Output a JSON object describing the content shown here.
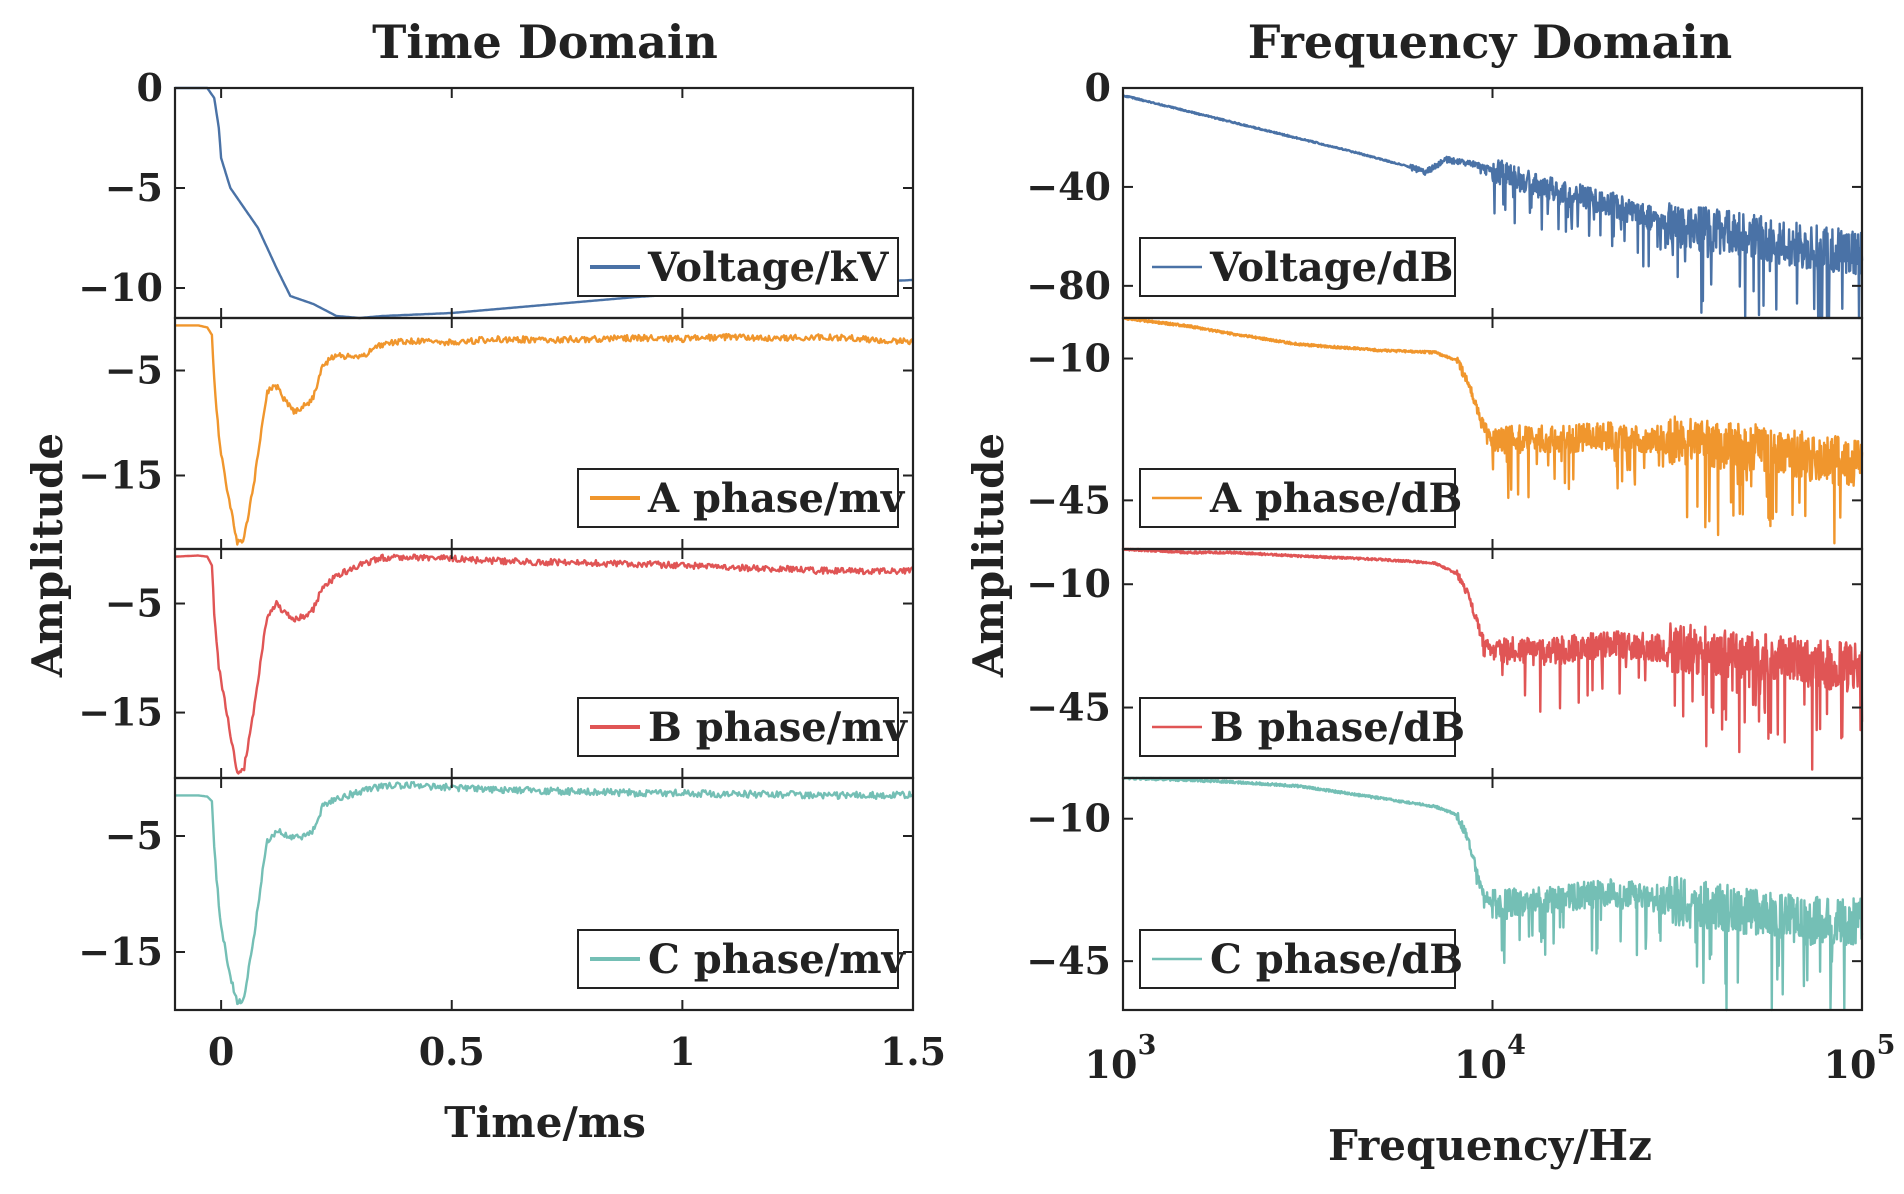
{
  "chart_data": [
    {
      "type": "line",
      "title": "Time Domain",
      "xlabel": "Time/ms",
      "ylabel": "Amplitude",
      "xscale": "linear",
      "xlim": [
        -0.1,
        1.5
      ],
      "xticks": [
        0,
        0.5,
        1,
        1.5
      ],
      "xtick_labels": [
        "0",
        "0.5",
        "1",
        "1.5"
      ],
      "panels": [
        {
          "legend": "Voltage/kV",
          "color": "#4a72a6",
          "ylim": [
            -11.5,
            0
          ],
          "yticks": [
            0,
            -5,
            -10
          ],
          "ytick_labels": [
            "0",
            "−5",
            "−10"
          ],
          "noise": 0,
          "x": [
            -0.1,
            -0.07,
            -0.03,
            -0.015,
            -0.005,
            0.0,
            0.02,
            0.05,
            0.08,
            0.1,
            0.12,
            0.15,
            0.2,
            0.25,
            0.3,
            0.35,
            0.4,
            0.5,
            0.6,
            0.7,
            0.8,
            0.9,
            1.0,
            1.1,
            1.2,
            1.3,
            1.4,
            1.5
          ],
          "values": [
            0,
            0,
            0,
            -0.5,
            -2,
            -3.5,
            -5,
            -6,
            -7,
            -8,
            -9,
            -10.4,
            -10.8,
            -11.4,
            -11.5,
            -11.4,
            -11.35,
            -11.25,
            -11.05,
            -10.85,
            -10.65,
            -10.45,
            -10.3,
            -10.15,
            -10,
            -9.85,
            -9.7,
            -9.6
          ]
        },
        {
          "legend": "A phase/mv",
          "color": "#f0962d",
          "ylim": [
            -22,
            0
          ],
          "yticks": [
            -5,
            -15
          ],
          "ytick_labels": [
            "−5",
            "−15"
          ],
          "noise": 0.3,
          "x": [
            -0.1,
            -0.05,
            -0.03,
            -0.02,
            -0.015,
            -0.005,
            0.0,
            0.02,
            0.035,
            0.05,
            0.07,
            0.09,
            0.1,
            0.12,
            0.14,
            0.16,
            0.19,
            0.2,
            0.22,
            0.25,
            0.3,
            0.35,
            0.4,
            0.5,
            0.6,
            0.7,
            0.8,
            0.9,
            1.0,
            1.1,
            1.2,
            1.3,
            1.4,
            1.5
          ],
          "values": [
            -0.7,
            -0.7,
            -0.9,
            -1.6,
            -6,
            -11,
            -13,
            -18,
            -21.5,
            -21,
            -16,
            -10,
            -7,
            -6.5,
            -8,
            -9,
            -8,
            -7.5,
            -4.5,
            -3.5,
            -3.8,
            -2.5,
            -2.2,
            -2.3,
            -2.0,
            -2.1,
            -2.0,
            -1.9,
            -2.0,
            -1.8,
            -1.9,
            -1.8,
            -2.0,
            -2.3
          ]
        },
        {
          "legend": "B phase/mv",
          "color": "#e05555",
          "ylim": [
            -21,
            0
          ],
          "yticks": [
            -5,
            -15
          ],
          "ytick_labels": [
            "−5",
            "−15"
          ],
          "noise": 0.3,
          "x": [
            -0.1,
            -0.05,
            -0.03,
            -0.02,
            -0.015,
            -0.005,
            0.0,
            0.02,
            0.035,
            0.05,
            0.07,
            0.09,
            0.1,
            0.12,
            0.14,
            0.16,
            0.19,
            0.2,
            0.22,
            0.25,
            0.3,
            0.35,
            0.4,
            0.5,
            0.6,
            0.7,
            0.8,
            0.9,
            1.0,
            1.1,
            1.2,
            1.3,
            1.4,
            1.5
          ],
          "values": [
            -0.7,
            -0.6,
            -0.7,
            -1.5,
            -6,
            -11,
            -12,
            -17,
            -20.5,
            -20,
            -15,
            -9,
            -6,
            -5,
            -6,
            -6.5,
            -6,
            -5.5,
            -3.5,
            -2.5,
            -1.5,
            -0.8,
            -0.7,
            -0.9,
            -1.1,
            -1.2,
            -1.3,
            -1.4,
            -1.5,
            -1.7,
            -1.8,
            -2.0,
            -2.0,
            -2.0
          ]
        },
        {
          "legend": "C phase/mv",
          "color": "#74bfb5",
          "ylim": [
            -20,
            0
          ],
          "yticks": [
            -5,
            -15
          ],
          "ytick_labels": [
            "−5",
            "−15"
          ],
          "noise": 0.3,
          "x": [
            -0.1,
            -0.05,
            -0.03,
            -0.02,
            -0.015,
            -0.005,
            0.0,
            0.02,
            0.035,
            0.05,
            0.07,
            0.09,
            0.1,
            0.12,
            0.14,
            0.16,
            0.19,
            0.2,
            0.22,
            0.25,
            0.3,
            0.35,
            0.4,
            0.5,
            0.6,
            0.7,
            0.8,
            0.9,
            1.0,
            1.1,
            1.2,
            1.3,
            1.4,
            1.5
          ],
          "values": [
            -1.5,
            -1.5,
            -1.6,
            -2.0,
            -6,
            -11,
            -13,
            -17,
            -19.5,
            -19,
            -14,
            -8,
            -5.5,
            -4.5,
            -5,
            -5.2,
            -4.8,
            -4.5,
            -2.5,
            -1.8,
            -1.2,
            -0.7,
            -0.6,
            -0.8,
            -1.0,
            -1.1,
            -1.2,
            -1.3,
            -1.3,
            -1.4,
            -1.4,
            -1.5,
            -1.5,
            -1.5
          ]
        }
      ]
    },
    {
      "type": "line",
      "title": "Frequency Domain",
      "xlabel": "Frequency/Hz",
      "ylabel": "Amplitude",
      "xscale": "log",
      "xlim": [
        1000,
        100000
      ],
      "xticks": [
        1000,
        10000,
        100000
      ],
      "xtick_labels": [
        "10",
        "10",
        "10"
      ],
      "xtick_exponents": [
        "3",
        "4",
        "5"
      ],
      "panels": [
        {
          "legend": "Voltage/dB",
          "color": "#4a72a6",
          "ylim": [
            -93,
            0
          ],
          "yticks": [
            0,
            -40,
            -80
          ],
          "ytick_labels": [
            "0",
            "−40",
            "−80"
          ],
          "x": [
            1000,
            2000,
            4000,
            6000,
            6600,
            7500,
            9000,
            10000,
            15000,
            20000,
            30000,
            50000,
            70000,
            100000
          ],
          "values": [
            -3,
            -14,
            -25,
            -32,
            -34,
            -29,
            -31,
            -33,
            -42,
            -46,
            -55,
            -60,
            -64,
            -67
          ],
          "noise_start": 6000,
          "noise_scale": [
            0.3,
            1.2,
            5,
            9
          ]
        },
        {
          "legend": "A phase/dB",
          "color": "#f0962d",
          "ylim": [
            -57,
            0
          ],
          "yticks": [
            -10,
            -45
          ],
          "ytick_labels": [
            "−10",
            "−45"
          ],
          "x": [
            1000,
            1500,
            2000,
            3000,
            5000,
            7000,
            8000,
            8600,
            9300,
            10000,
            15000,
            20000,
            30000,
            50000,
            70000,
            100000
          ],
          "values": [
            0,
            -2,
            -4,
            -6.5,
            -8,
            -8.5,
            -10.5,
            -16,
            -25,
            -30,
            -30,
            -29,
            -30,
            -32,
            -34,
            -36
          ],
          "noise_start": 8000,
          "noise_scale": [
            0.3,
            1.2,
            3.5,
            6
          ]
        },
        {
          "legend": "B phase/dB",
          "color": "#e05555",
          "ylim": [
            -65,
            0
          ],
          "yticks": [
            -10,
            -45
          ],
          "ytick_labels": [
            "−10",
            "−45"
          ],
          "x": [
            1000,
            1500,
            2000,
            3000,
            5000,
            7000,
            8000,
            8600,
            9300,
            10000,
            15000,
            20000,
            30000,
            50000,
            70000,
            100000
          ],
          "values": [
            0,
            -1,
            -1,
            -2,
            -3,
            -4,
            -7,
            -13,
            -24,
            -29,
            -29,
            -27,
            -28,
            -30,
            -32,
            -34
          ],
          "noise_start": 8000,
          "noise_scale": [
            0.3,
            1.2,
            4,
            7
          ]
        },
        {
          "legend": "C phase/dB",
          "color": "#74bfb5",
          "ylim": [
            -57,
            0
          ],
          "yticks": [
            -10,
            -45
          ],
          "ytick_labels": [
            "−10",
            "−45"
          ],
          "x": [
            1000,
            1500,
            2000,
            3000,
            5000,
            7000,
            8000,
            8600,
            9300,
            10000,
            15000,
            20000,
            30000,
            50000,
            70000,
            100000
          ],
          "values": [
            0,
            -0.5,
            -1,
            -2,
            -5,
            -7,
            -9,
            -15,
            -27,
            -31,
            -30,
            -28,
            -30,
            -33,
            -35,
            -35
          ],
          "noise_start": 8000,
          "noise_scale": [
            0.3,
            1.2,
            3.5,
            6
          ]
        }
      ]
    }
  ]
}
